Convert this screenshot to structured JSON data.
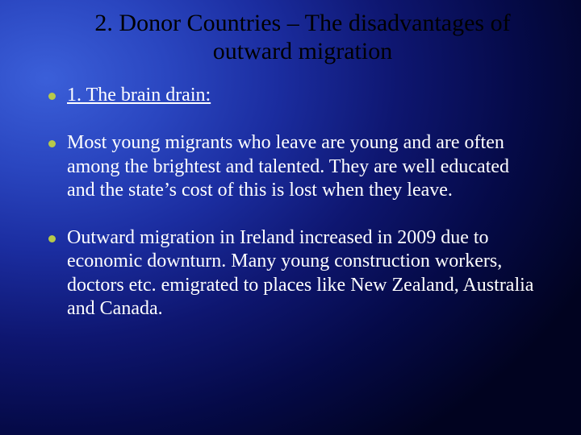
{
  "slide": {
    "background": {
      "gradient_center": "#3b5fd9",
      "gradient_mid": "#1b2da0",
      "gradient_edge": "#010320"
    },
    "title": {
      "text": "2. Donor Countries – The disadvantages of outward migration",
      "color": "#000000",
      "font_size_pt": 30
    },
    "bullets": [
      {
        "text": "1. The brain drain:",
        "underline": true,
        "dot_color": "#b7c94a"
      },
      {
        "text": "Most young migrants who leave are young and are often among the brightest and talented. They are well educated and the state’s cost of this is lost when they leave.",
        "underline": false,
        "dot_color": "#b7c94a"
      },
      {
        "text": "Outward migration in Ireland increased in 2009 due to economic downturn. Many young construction workers, doctors etc. emigrated to places like New Zealand, Australia and Canada.",
        "underline": false,
        "dot_color": "#b7c94a"
      }
    ],
    "body_text_color": "#ffffff",
    "body_font_size_pt": 24
  }
}
